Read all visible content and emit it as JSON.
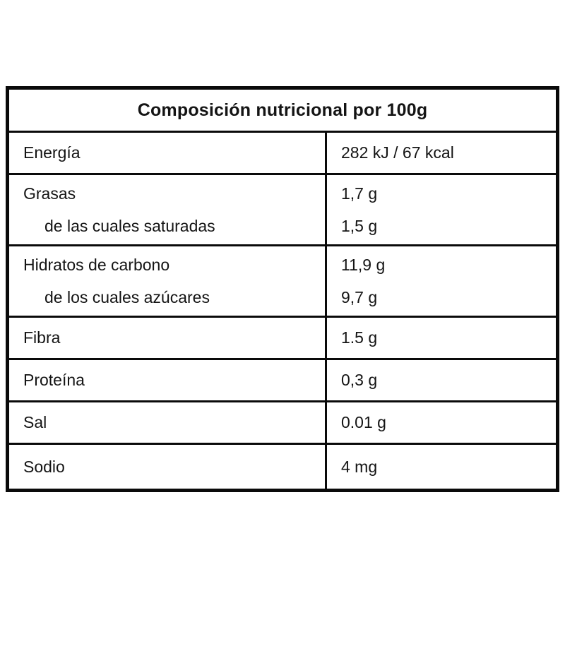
{
  "table": {
    "title": "Composición nutricional por 100g",
    "rows": [
      {
        "label": "Energía",
        "value": "282 kJ / 67 kcal"
      },
      {
        "label": "Grasas",
        "value": "1,7 g",
        "sub_label": "de las cuales saturadas",
        "sub_value": "1,5 g"
      },
      {
        "label": "Hidratos de carbono",
        "value": "11,9 g",
        "sub_label": "de los cuales azúcares",
        "sub_value": "9,7 g"
      },
      {
        "label": "Fibra",
        "value": "1.5 g"
      },
      {
        "label": "Proteína",
        "value": "0,3 g"
      },
      {
        "label": "Sal",
        "value": "0.01 g"
      },
      {
        "label": "Sodio",
        "value": "4 mg"
      }
    ],
    "colors": {
      "border": "#0a0a0a",
      "text": "#141414",
      "background": "#ffffff"
    }
  }
}
